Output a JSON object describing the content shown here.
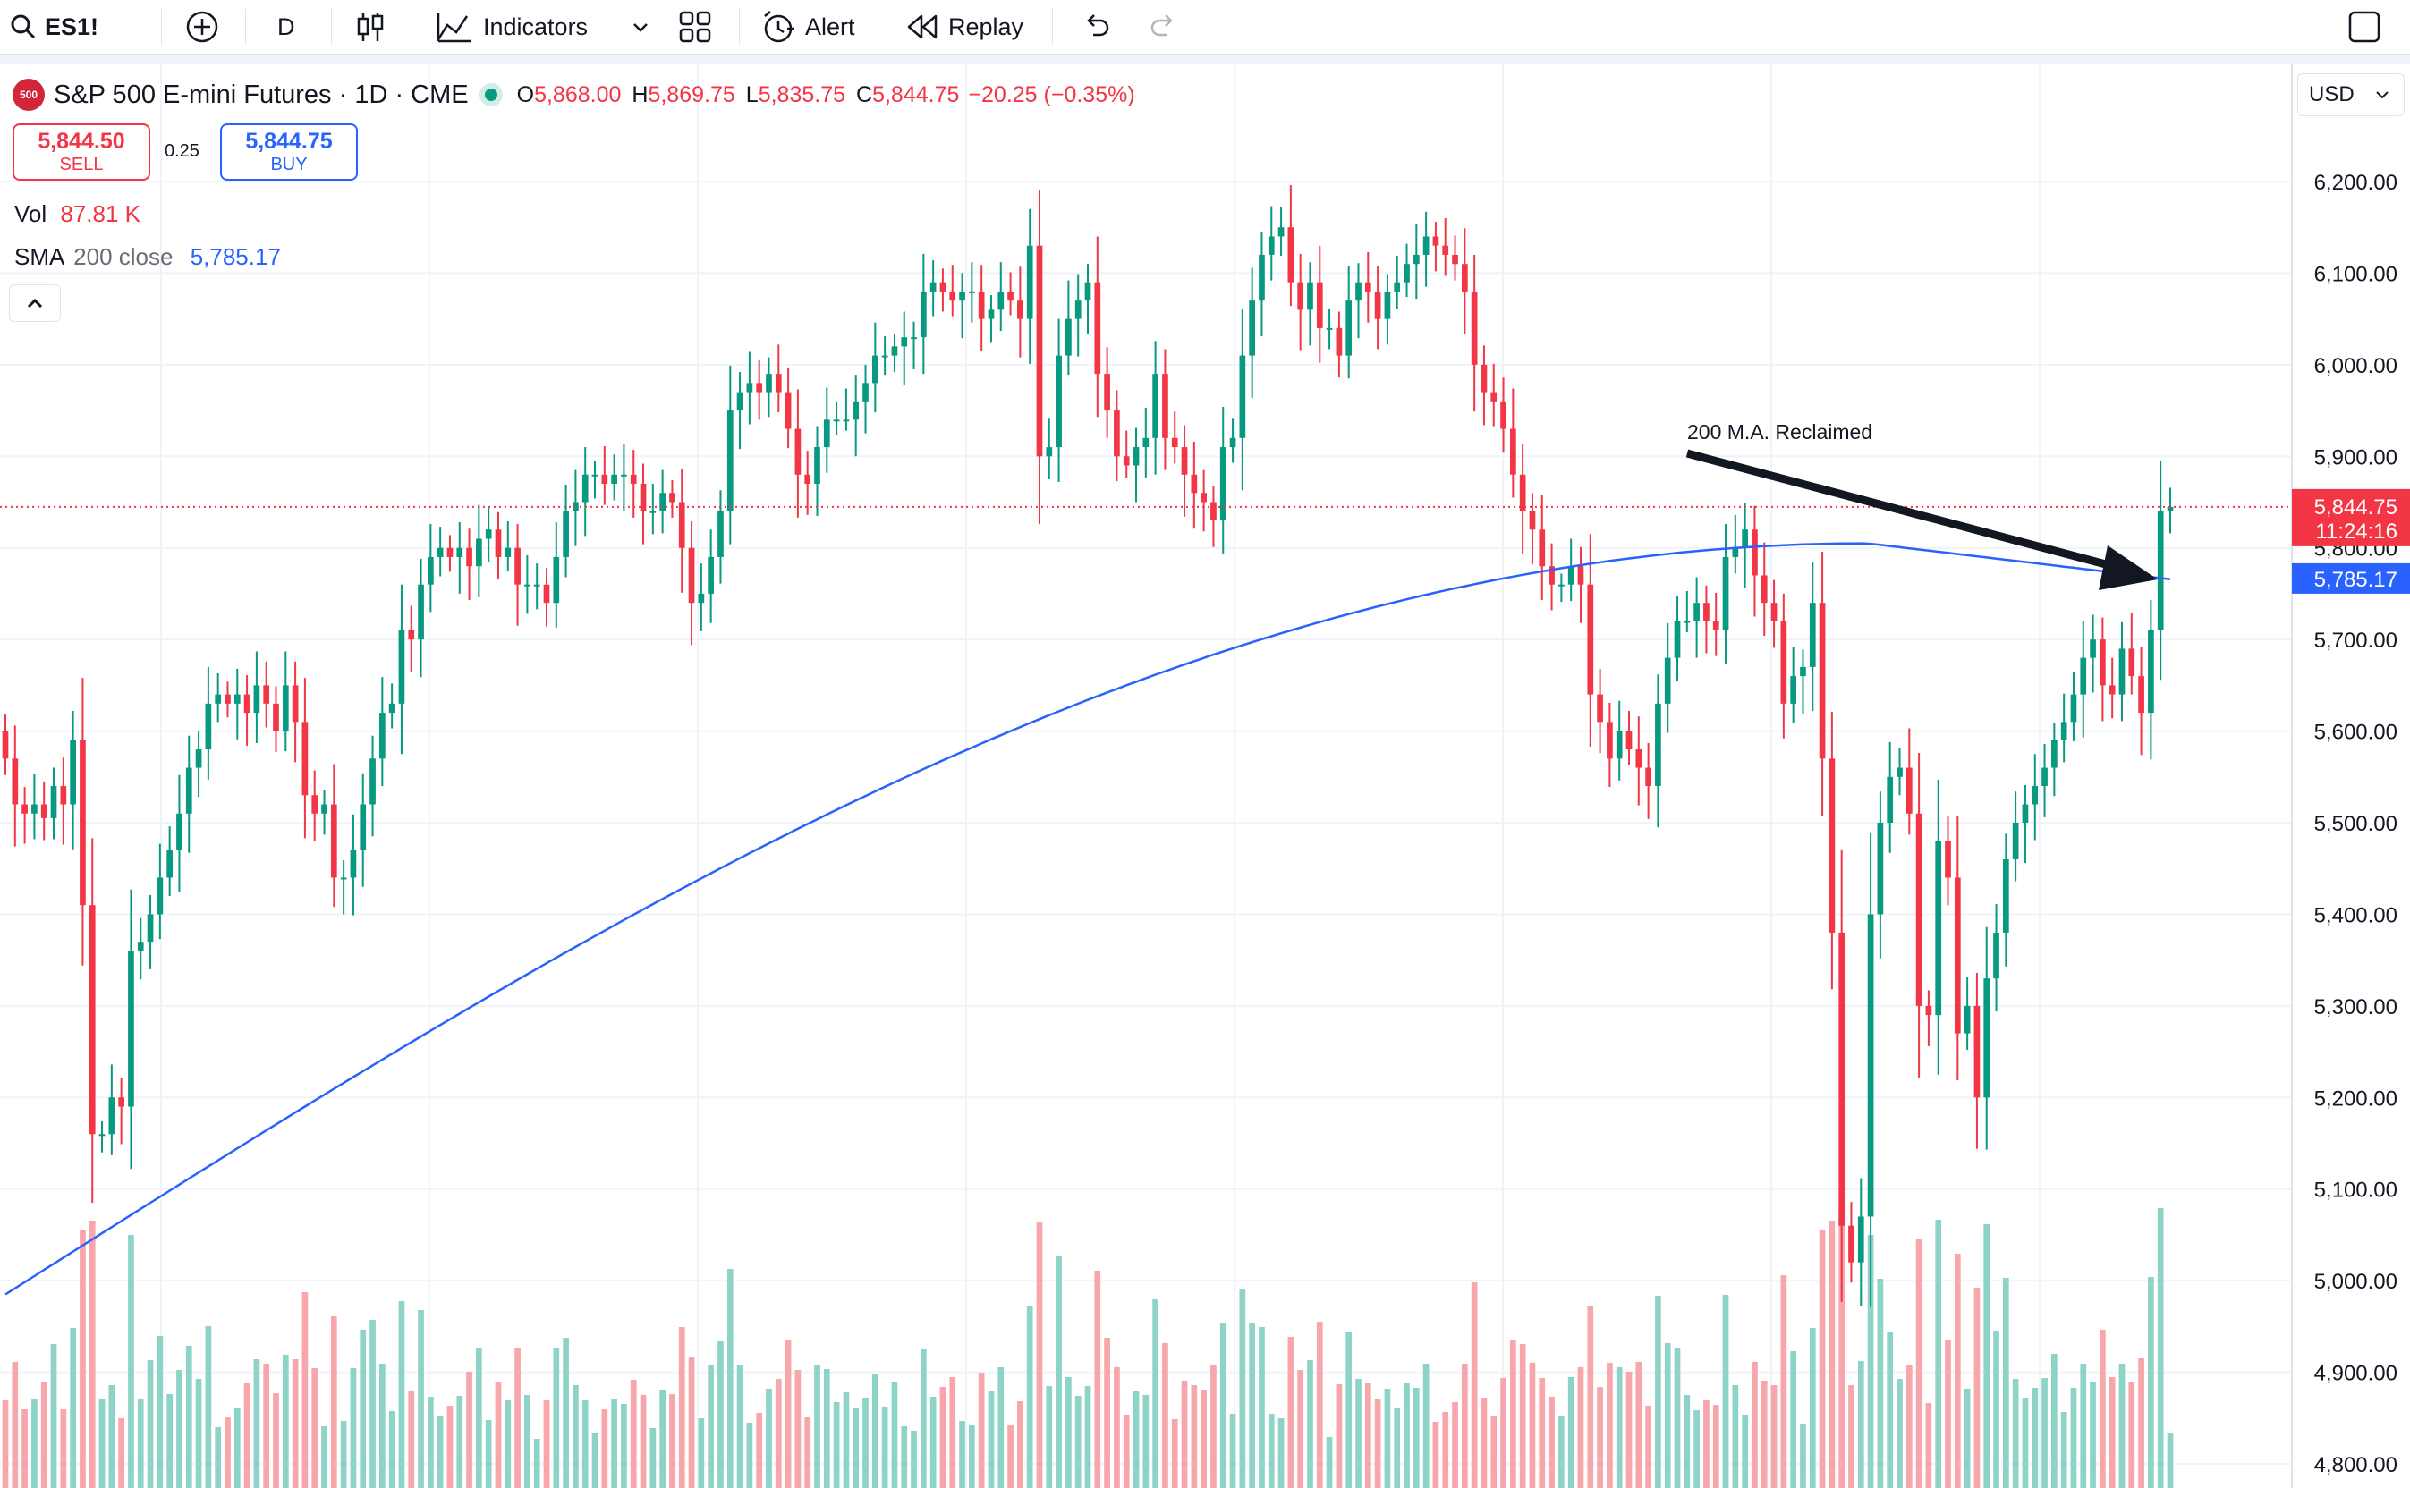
{
  "toolbar": {
    "symbol": "ES1!",
    "interval": "D",
    "indicators_label": "Indicators",
    "alert_label": "Alert",
    "replay_label": "Replay"
  },
  "legend": {
    "instrument": "S&P 500 E-mini Futures · 1D · CME",
    "badge": "500",
    "o_label": "O",
    "o_value": "5,868.00",
    "h_label": "H",
    "h_value": "5,869.75",
    "l_label": "L",
    "l_value": "5,835.75",
    "c_label": "C",
    "c_value": "5,844.75",
    "change": "−20.25 (−0.35%)"
  },
  "trade": {
    "sell_price": "5,844.50",
    "sell_label": "SELL",
    "spread": "0.25",
    "buy_price": "5,844.75",
    "buy_label": "BUY"
  },
  "indicators": {
    "vol_label": "Vol",
    "vol_value": "87.81 K",
    "sma_label": "SMA",
    "sma_params": "200 close",
    "sma_value": "5,785.17"
  },
  "currency": "USD",
  "annotation": "200 M.A. Reclaimed",
  "colors": {
    "up": "#089981",
    "down": "#f23645",
    "sma": "#2962ff",
    "up_vol": "#8ed3c7",
    "down_vol": "#f7a6ac"
  },
  "chart_data": {
    "type": "candlestick",
    "y_axis_ticks": [
      "6,200.00",
      "6,100.00",
      "6,000.00",
      "5,900.00",
      "5,800.00",
      "5,700.00",
      "5,600.00",
      "5,500.00",
      "5,400.00",
      "5,300.00",
      "5,200.00",
      "5,100.00",
      "5,000.00",
      "4,900.00",
      "4,800.00"
    ],
    "ylim": [
      4780,
      6270
    ],
    "price_labels": {
      "last": "5,844.75",
      "countdown": "11:24:16",
      "sma": "5,785.17"
    },
    "last_price": 5844.75,
    "sma_last": 5785.17,
    "grid": true,
    "candles_close": [
      5570,
      5520,
      5510,
      5520,
      5505,
      5540,
      5520,
      5590,
      5410,
      5160,
      5160,
      5200,
      5190,
      5360,
      5370,
      5400,
      5440,
      5470,
      5510,
      5560,
      5580,
      5630,
      5640,
      5630,
      5640,
      5620,
      5650,
      5630,
      5600,
      5650,
      5610,
      5530,
      5510,
      5520,
      5440,
      5440,
      5470,
      5520,
      5570,
      5620,
      5630,
      5710,
      5700,
      5760,
      5790,
      5800,
      5790,
      5800,
      5780,
      5810,
      5820,
      5790,
      5800,
      5760,
      5760,
      5760,
      5740,
      5790,
      5840,
      5850,
      5880,
      5880,
      5870,
      5880,
      5880,
      5870,
      5840,
      5840,
      5860,
      5850,
      5800,
      5740,
      5750,
      5790,
      5840,
      5950,
      5970,
      5980,
      5970,
      5990,
      5970,
      5930,
      5880,
      5870,
      5910,
      5940,
      5940,
      5940,
      5960,
      5980,
      6010,
      6010,
      6020,
      6030,
      6030,
      6080,
      6090,
      6080,
      6070,
      6080,
      6080,
      6050,
      6060,
      6080,
      6070,
      6050,
      6130,
      5900,
      5910,
      6010,
      6050,
      6070,
      6090,
      5990,
      5950,
      5900,
      5890,
      5910,
      5920,
      5990,
      5920,
      5910,
      5880,
      5860,
      5850,
      5830,
      5910,
      5920,
      6010,
      6070,
      6120,
      6140,
      6150,
      6090,
      6060,
      6090,
      6040,
      6040,
      6010,
      6070,
      6090,
      6080,
      6050,
      6080,
      6090,
      6110,
      6120,
      6140,
      6130,
      6120,
      6110,
      6080,
      6000,
      5970,
      5960,
      5930,
      5880,
      5840,
      5820,
      5780,
      5760,
      5760,
      5780,
      5760,
      5640,
      5610,
      5570,
      5600,
      5580,
      5560,
      5540,
      5630,
      5680,
      5720,
      5720,
      5740,
      5720,
      5710,
      5790,
      5800,
      5820,
      5770,
      5740,
      5720,
      5630,
      5660,
      5670,
      5740,
      5570,
      5380,
      5060,
      5020,
      5070,
      5400,
      5500,
      5550,
      5560,
      5510,
      5300,
      5290,
      5480,
      5440,
      5270,
      5300,
      5200,
      5330,
      5380,
      5460,
      5500,
      5520,
      5540,
      5560,
      5590,
      5610,
      5640,
      5680,
      5700,
      5650,
      5640,
      5690,
      5660,
      5620,
      5710,
      5840,
      5844.75
    ]
  }
}
